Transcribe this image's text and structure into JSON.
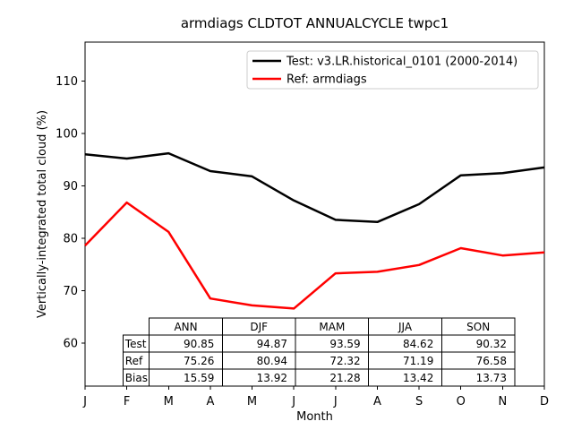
{
  "chart_data": {
    "type": "line",
    "title": "armdiags CLDTOT ANNUALCYCLE twpc1",
    "xlabel": "Month",
    "ylabel": "Vertically-integrated total cloud (%)",
    "x": [
      "J",
      "F",
      "M",
      "A",
      "M",
      "J",
      "J",
      "A",
      "S",
      "O",
      "N",
      "D"
    ],
    "yticks": [
      60,
      70,
      80,
      90,
      100,
      110
    ],
    "ylim": [
      51.8,
      117.4
    ],
    "grid": false,
    "legend_position": "upper center",
    "series": [
      {
        "name": "Test: v3.LR.historical_0101 (2000-2014)",
        "color": "#000000",
        "values": [
          96.0,
          95.2,
          96.2,
          92.8,
          91.8,
          87.2,
          83.5,
          83.1,
          86.5,
          92.0,
          92.4,
          93.5
        ]
      },
      {
        "name": "Ref: armdiags",
        "color": "#ff0000",
        "values": [
          78.6,
          86.8,
          81.2,
          68.5,
          67.2,
          66.6,
          73.3,
          73.6,
          74.9,
          78.1,
          76.7,
          77.3
        ]
      }
    ],
    "table": {
      "col_headers": [
        "ANN",
        "DJF",
        "MAM",
        "JJA",
        "SON"
      ],
      "rows": [
        {
          "label": "Test",
          "values": [
            "90.85",
            "94.87",
            "93.59",
            "84.62",
            "90.32"
          ]
        },
        {
          "label": "Ref",
          "values": [
            "75.26",
            "80.94",
            "72.32",
            "71.19",
            "76.58"
          ]
        },
        {
          "label": "Bias",
          "values": [
            "15.59",
            "13.92",
            "21.28",
            "13.42",
            "13.73"
          ]
        }
      ]
    }
  }
}
